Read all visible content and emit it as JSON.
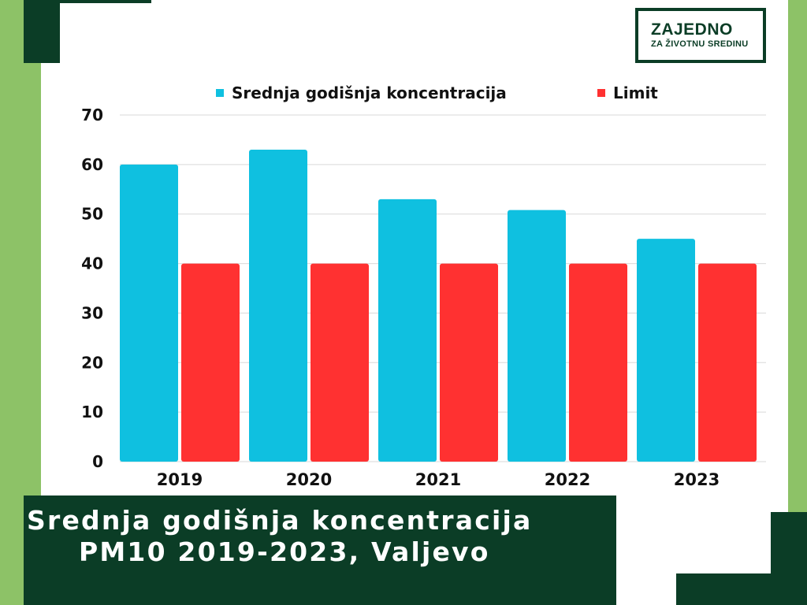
{
  "logo": {
    "line1": "ZAJEDNO",
    "line2": "ZA ŽIVOTNU SREDINU"
  },
  "title": {
    "line1": "Srednja godišnja koncentracija",
    "line2": "PM10 2019-2023, Valjevo"
  },
  "colors": {
    "background_green": "#8dc267",
    "dark_green": "#0b3d26",
    "series_blue": "#0fc0e0",
    "series_red": "#ff3131"
  },
  "chart_data": {
    "type": "bar",
    "categories": [
      "2019",
      "2020",
      "2021",
      "2022",
      "2023"
    ],
    "series": [
      {
        "name": "Srednja godišnja koncentracija",
        "values": [
          60,
          63,
          53,
          50.8,
          45
        ],
        "color": "#0fc0e0"
      },
      {
        "name": "Limit",
        "values": [
          40,
          40,
          40,
          40,
          40
        ],
        "color": "#ff3131"
      }
    ],
    "title": "",
    "xlabel": "",
    "ylabel": "",
    "ylim": [
      0,
      70
    ],
    "yticks": [
      0,
      10,
      20,
      30,
      40,
      50,
      60,
      70
    ],
    "grid": true,
    "legend_position": "top"
  }
}
